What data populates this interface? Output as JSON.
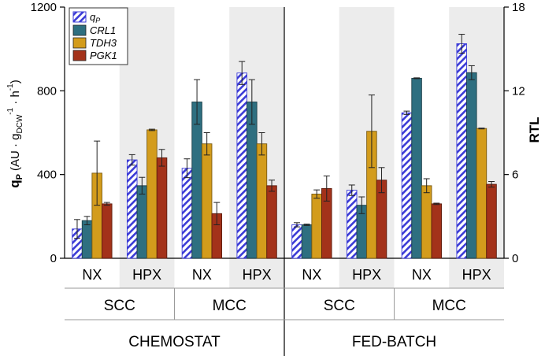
{
  "chart_data": {
    "type": "bar",
    "title": "",
    "ylabel_left": {
      "main": "q",
      "sub": "P",
      "paren": "(AU · g",
      "sub2": "DCW",
      "sup1": "-1",
      "mid": " · h",
      "sup2": "-1",
      "close": ")"
    },
    "ylabel_right": "RTL",
    "ylim_left": [
      0,
      1200
    ],
    "ylim_right": [
      0,
      18
    ],
    "yticks_left": [
      "0",
      "400",
      "800",
      "1200"
    ],
    "yticks_left_values": [
      0,
      400,
      800,
      1200
    ],
    "yticks_right": [
      "0",
      "6",
      "12",
      "18"
    ],
    "yticks_right_values": [
      0,
      6,
      12,
      18
    ],
    "modes": [
      "CHEMOSTAT",
      "FED-BATCH"
    ],
    "processes": [
      "SCC",
      "MCC",
      "SCC",
      "MCC"
    ],
    "conditions": [
      "NX",
      "HPX",
      "NX",
      "HPX",
      "NX",
      "HPX",
      "NX",
      "HPX"
    ],
    "legend": [
      {
        "label": "qP",
        "main": "q",
        "sub": "P"
      },
      {
        "label": "CRL1"
      },
      {
        "label": "TDH3"
      },
      {
        "label": "PGK1"
      }
    ],
    "colors": {
      "qP_stripe": "#3b3bd6",
      "CRL1": "#2e6f80",
      "TDH3": "#d39c1c",
      "PGK1": "#a3321a",
      "shade": "#ececec"
    },
    "series": [
      {
        "name": "qP",
        "axis": "left",
        "values": [
          140,
          470,
          430,
          885,
          160,
          325,
          695,
          1025
        ],
        "errors": [
          45,
          25,
          45,
          55,
          10,
          25,
          8,
          45
        ]
      },
      {
        "name": "CRL1",
        "axis": "right",
        "values": [
          2.7,
          5.2,
          11.2,
          11.2,
          2.4,
          3.8,
          12.9,
          13.3
        ],
        "errors": [
          0.3,
          0.6,
          1.6,
          1.6,
          0.05,
          0.6,
          0.03,
          0.5
        ]
      },
      {
        "name": "TDH3",
        "axis": "right",
        "values": [
          6.1,
          9.2,
          8.2,
          8.2,
          4.6,
          9.1,
          5.2,
          9.3
        ],
        "errors": [
          2.3,
          0.05,
          0.8,
          0.8,
          0.3,
          2.6,
          0.5,
          0.03
        ]
      },
      {
        "name": "PGK1",
        "axis": "right",
        "values": [
          3.9,
          7.2,
          3.2,
          5.2,
          5.0,
          5.6,
          3.9,
          5.3
        ],
        "errors": [
          0.1,
          0.6,
          0.8,
          0.4,
          0.9,
          0.9,
          0.05,
          0.2
        ]
      }
    ]
  }
}
